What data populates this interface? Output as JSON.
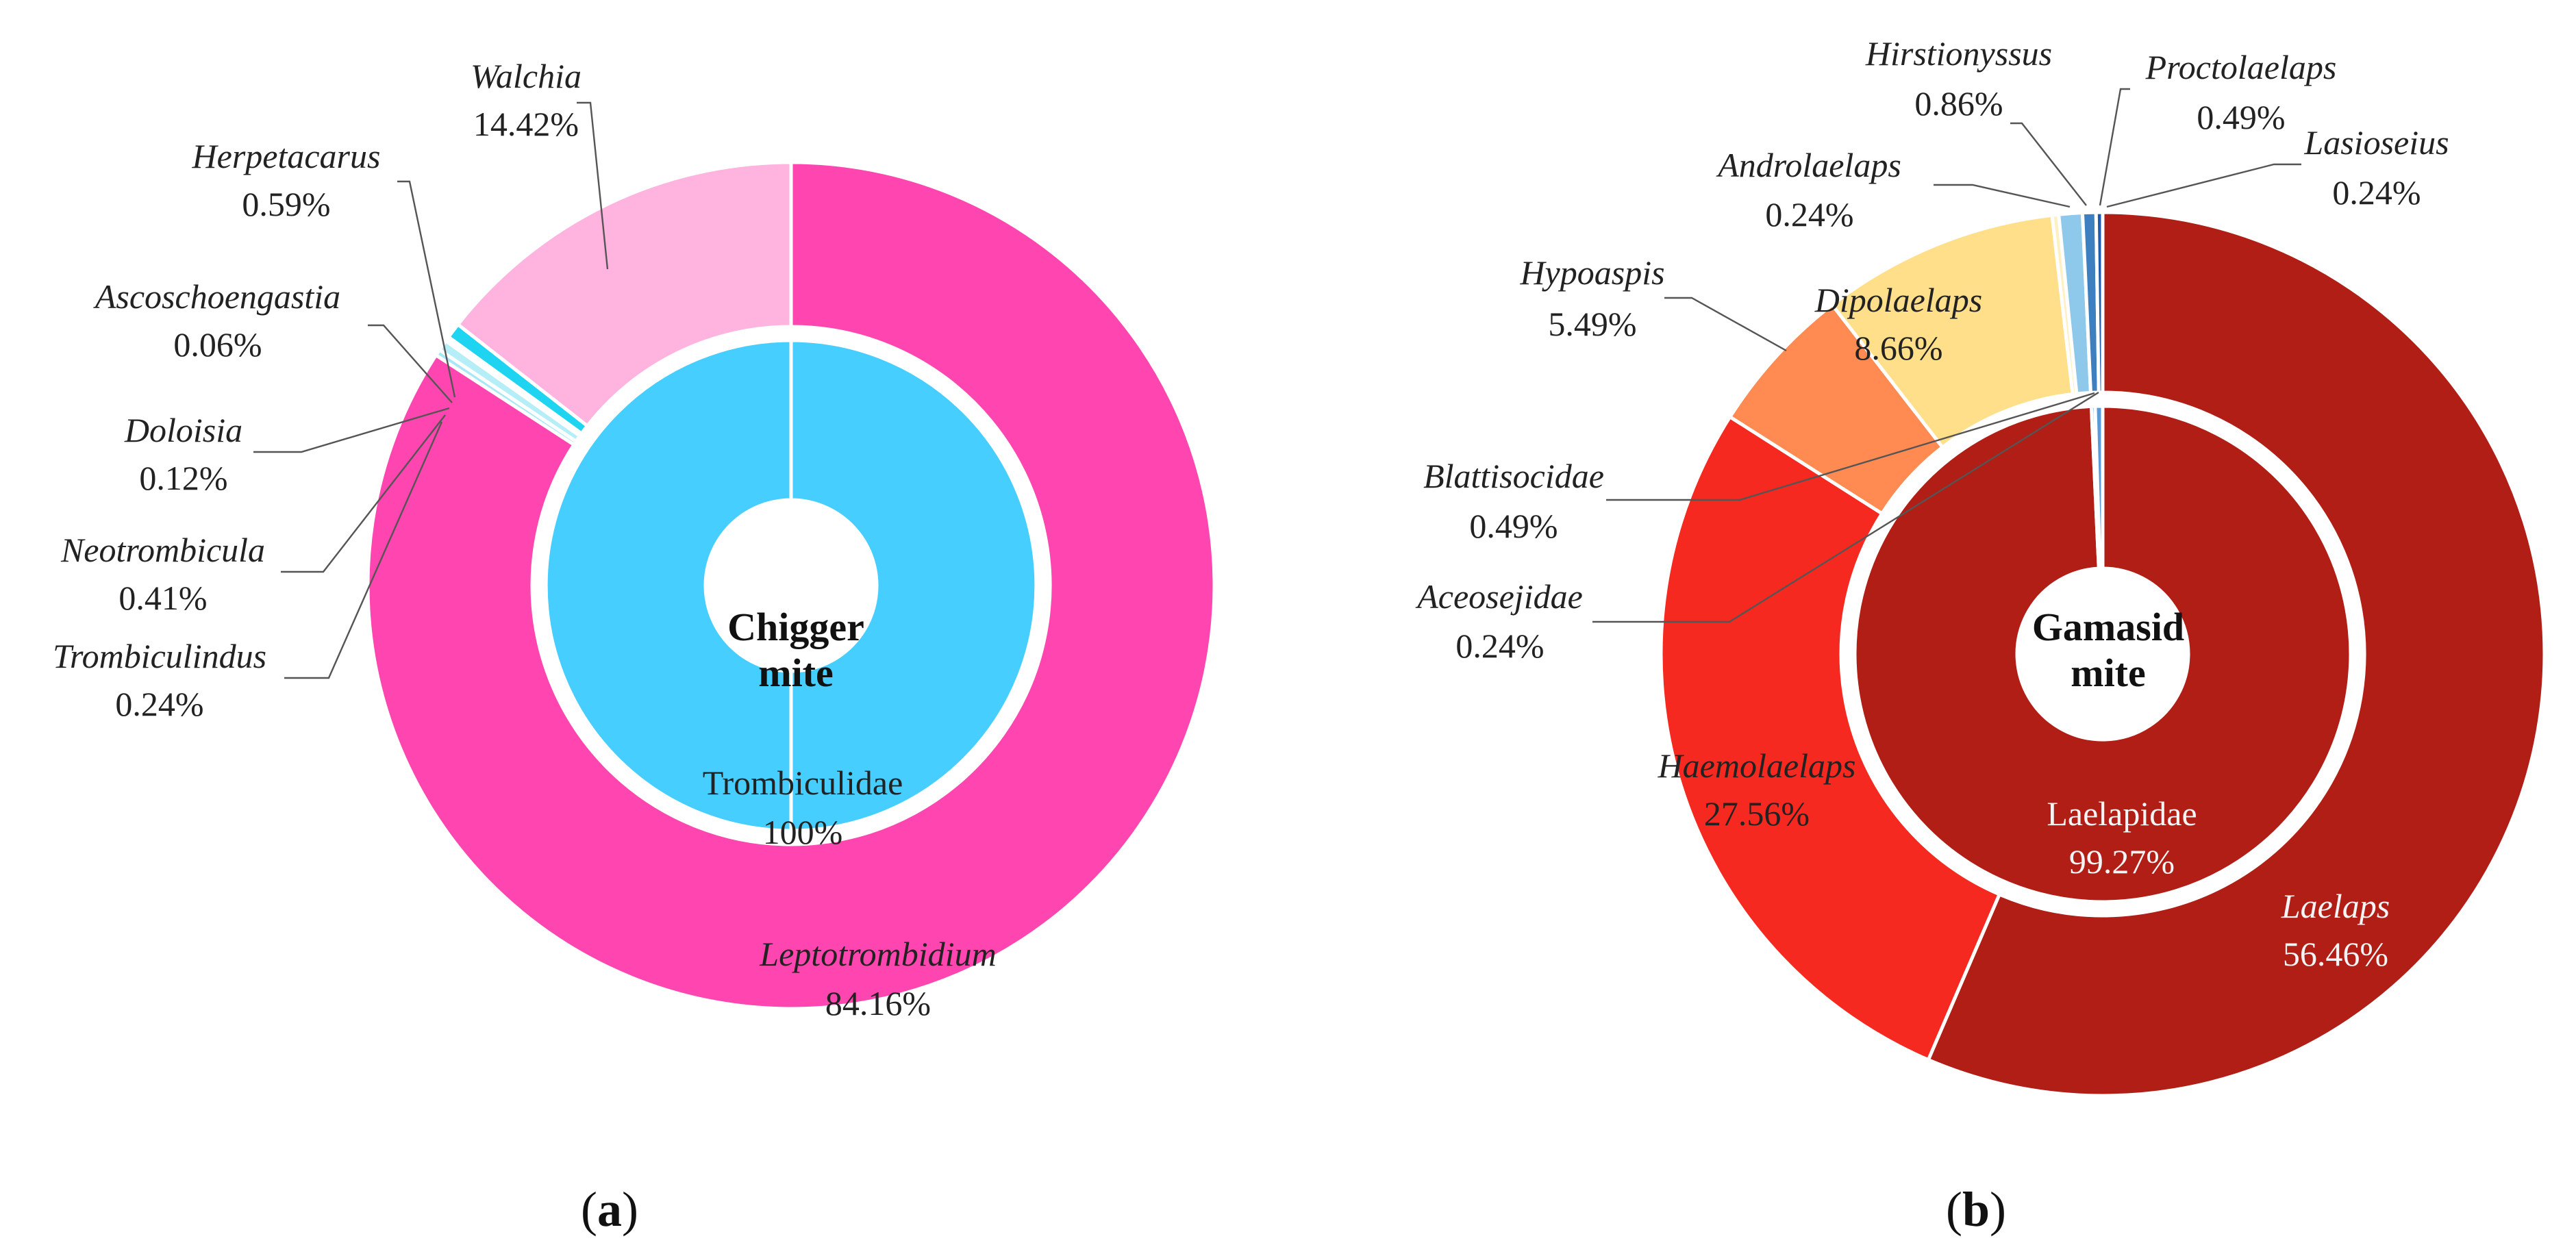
{
  "chart_data": [
    {
      "type": "pie",
      "panel": "a",
      "caption_letter": "a",
      "center_label_line1": "Chigger",
      "center_label_line2": "mite",
      "inner_ring": [
        {
          "name": "Trombiculidae",
          "value_label": "100%",
          "value": 100,
          "color": "#45CEFF"
        }
      ],
      "outer_ring": [
        {
          "name": "Leptotrombidium",
          "value_label": "84.16%",
          "value": 84.16,
          "color": "#FF45AF"
        },
        {
          "name": "Trombiculindus",
          "value_label": "0.24%",
          "value": 0.24,
          "color": "#A6E8F5"
        },
        {
          "name": "Neotrombicula",
          "value_label": "0.41%",
          "value": 0.41,
          "color": "#B6EEF8"
        },
        {
          "name": "Doloisia",
          "value_label": "0.12%",
          "value": 0.12,
          "color": "#7FDDF3"
        },
        {
          "name": "Ascoschoengastia",
          "value_label": "0.06%",
          "value": 0.06,
          "color": "#66D6EE"
        },
        {
          "name": "Herpetacarus",
          "value_label": "0.59%",
          "value": 0.59,
          "color": "#1ED4F0"
        },
        {
          "name": "Walchia",
          "value_label": "14.42%",
          "value": 14.42,
          "color": "#FFB3DF"
        }
      ]
    },
    {
      "type": "pie",
      "panel": "b",
      "caption_letter": "b",
      "center_label_line1": "Gamasid",
      "center_label_line2": "mite",
      "inner_ring": [
        {
          "name": "Laelapidae",
          "value_label": "99.27%",
          "value": 99.27,
          "color": "#B01E16"
        },
        {
          "name": "Aceosejidae",
          "value_label": "0.24%",
          "value": 0.24,
          "color": "#3E7FBF"
        },
        {
          "name": "Blattisocidae",
          "value_label": "0.49%",
          "value": 0.49,
          "color": "#5B9BD5"
        }
      ],
      "outer_ring": [
        {
          "name": "Laelaps",
          "value_label": "56.46%",
          "value": 56.46,
          "color": "#B01E16"
        },
        {
          "name": "Haemolaelaps",
          "value_label": "27.56%",
          "value": 27.56,
          "color": "#F5291F"
        },
        {
          "name": "Hypoaspis",
          "value_label": "5.49%",
          "value": 5.49,
          "color": "#FF8A52"
        },
        {
          "name": "Dipolaelaps",
          "value_label": "8.66%",
          "value": 8.66,
          "color": "#FFDF8A"
        },
        {
          "name": "Androlaelaps",
          "value_label": "0.24%",
          "value": 0.24,
          "color": "#FFF0C2"
        },
        {
          "name": "Hirstionyssus",
          "value_label": "0.86%",
          "value": 0.86,
          "color": "#8EC8EA"
        },
        {
          "name": "Proctolaelaps",
          "value_label": "0.49%",
          "value": 0.49,
          "color": "#3E7FBF"
        },
        {
          "name": "Lasioseius",
          "value_label": "0.24%",
          "value": 0.24,
          "color": "#1E5BA8"
        }
      ]
    }
  ]
}
